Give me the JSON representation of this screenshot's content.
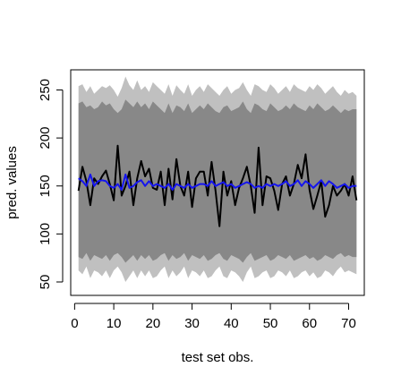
{
  "chart_data": {
    "type": "line",
    "title": "",
    "xlabel": "test set obs.",
    "ylabel": "pred. values",
    "xlim": [
      -1,
      74
    ],
    "ylim": [
      36,
      271
    ],
    "xticks": [
      0,
      10,
      20,
      30,
      40,
      50,
      60,
      70
    ],
    "yticks": [
      50,
      100,
      150,
      200,
      250
    ],
    "grid": false,
    "colors": {
      "outer_band": "#c0c0c0",
      "inner_band": "#888888",
      "observed": "#000000",
      "predicted": "#1515ee"
    },
    "x": [
      1,
      2,
      3,
      4,
      5,
      6,
      7,
      8,
      9,
      10,
      11,
      12,
      13,
      14,
      15,
      16,
      17,
      18,
      19,
      20,
      21,
      22,
      23,
      24,
      25,
      26,
      27,
      28,
      29,
      30,
      31,
      32,
      33,
      34,
      35,
      36,
      37,
      38,
      39,
      40,
      41,
      42,
      43,
      44,
      45,
      46,
      47,
      48,
      49,
      50,
      51,
      52,
      53,
      54,
      55,
      56,
      57,
      58,
      59,
      60,
      61,
      62,
      63,
      64,
      65,
      66,
      67,
      68,
      69,
      70,
      71,
      72
    ],
    "series": [
      {
        "role": "outer-upper",
        "values": [
          254,
          256,
          248,
          254,
          246,
          250,
          254,
          252,
          255,
          250,
          243,
          252,
          264,
          255,
          250,
          260,
          250,
          254,
          248,
          258,
          254,
          250,
          246,
          256,
          244,
          255,
          250,
          246,
          256,
          244,
          250,
          254,
          248,
          256,
          252,
          248,
          244,
          250,
          254,
          246,
          250,
          252,
          258,
          250,
          244,
          256,
          254,
          250,
          248,
          256,
          252,
          246,
          250,
          254,
          248,
          256,
          252,
          250,
          248,
          254,
          250,
          256,
          252,
          246,
          250,
          254,
          248,
          244,
          250,
          246,
          248,
          244
        ]
      },
      {
        "role": "inner-upper",
        "values": [
          236,
          238,
          232,
          234,
          230,
          232,
          238,
          234,
          236,
          230,
          226,
          230,
          240,
          236,
          232,
          238,
          232,
          236,
          230,
          238,
          234,
          230,
          226,
          236,
          226,
          234,
          232,
          228,
          236,
          226,
          230,
          234,
          230,
          236,
          232,
          228,
          226,
          232,
          234,
          228,
          230,
          232,
          238,
          230,
          226,
          236,
          234,
          230,
          228,
          236,
          232,
          228,
          230,
          234,
          230,
          236,
          232,
          230,
          228,
          234,
          230,
          236,
          232,
          228,
          230,
          234,
          230,
          226,
          230,
          228,
          230,
          230
        ]
      },
      {
        "role": "inner-lower",
        "values": [
          76,
          74,
          80,
          72,
          78,
          76,
          74,
          78,
          72,
          78,
          80,
          76,
          70,
          74,
          78,
          72,
          78,
          74,
          78,
          72,
          74,
          78,
          80,
          72,
          78,
          74,
          76,
          80,
          72,
          78,
          76,
          74,
          78,
          72,
          74,
          78,
          80,
          74,
          72,
          78,
          76,
          74,
          70,
          76,
          80,
          72,
          74,
          76,
          78,
          72,
          74,
          78,
          76,
          74,
          78,
          72,
          74,
          76,
          78,
          74,
          76,
          72,
          74,
          78,
          76,
          74,
          78,
          80,
          76,
          78,
          76,
          76
        ]
      },
      {
        "role": "outer-lower",
        "values": [
          62,
          58,
          66,
          54,
          62,
          60,
          56,
          62,
          54,
          62,
          66,
          60,
          50,
          56,
          62,
          54,
          62,
          56,
          62,
          54,
          56,
          62,
          66,
          54,
          62,
          56,
          60,
          66,
          54,
          62,
          60,
          56,
          62,
          54,
          56,
          62,
          66,
          56,
          54,
          62,
          60,
          56,
          50,
          60,
          66,
          54,
          56,
          60,
          62,
          54,
          56,
          62,
          60,
          56,
          62,
          54,
          56,
          60,
          62,
          56,
          60,
          54,
          56,
          62,
          60,
          56,
          62,
          66,
          60,
          62,
          60,
          58
        ]
      },
      {
        "role": "observed",
        "values": [
          145,
          170,
          155,
          130,
          158,
          152,
          160,
          166,
          152,
          135,
          192,
          140,
          150,
          165,
          130,
          158,
          176,
          160,
          168,
          148,
          146,
          165,
          130,
          168,
          136,
          178,
          150,
          140,
          165,
          128,
          158,
          165,
          165,
          140,
          175,
          145,
          108,
          165,
          140,
          155,
          130,
          148,
          158,
          170,
          150,
          122,
          190,
          130,
          160,
          158,
          145,
          125,
          152,
          160,
          140,
          152,
          172,
          158,
          183,
          146,
          126,
          140,
          155,
          118,
          130,
          150,
          140,
          145,
          152,
          140,
          160,
          135
        ]
      },
      {
        "role": "predicted",
        "values": [
          158,
          155,
          150,
          162,
          150,
          155,
          156,
          155,
          150,
          148,
          152,
          146,
          162,
          148,
          150,
          154,
          156,
          150,
          155,
          150,
          152,
          150,
          148,
          152,
          146,
          152,
          150,
          148,
          152,
          148,
          150,
          152,
          152,
          150,
          155,
          150,
          152,
          154,
          150,
          152,
          148,
          150,
          152,
          154,
          152,
          148,
          150,
          148,
          152,
          150,
          152,
          150,
          152,
          155,
          150,
          152,
          156,
          150,
          155,
          152,
          148,
          152,
          156,
          150,
          155,
          152,
          148,
          150,
          152,
          148,
          150,
          150
        ]
      }
    ]
  }
}
